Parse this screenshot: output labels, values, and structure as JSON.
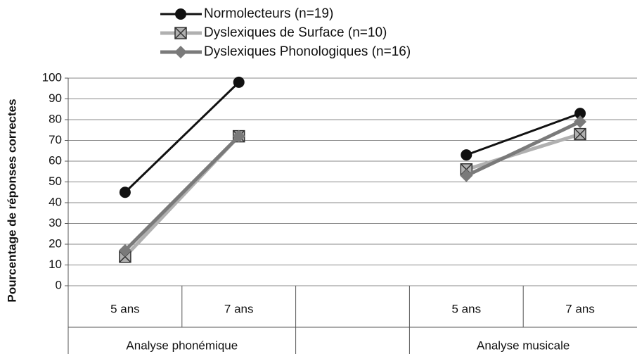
{
  "chart_data": {
    "type": "line",
    "ylabel": "Pourcentage de réponses correctes",
    "categories": [
      "5 ans",
      "7 ans",
      null,
      "5 ans",
      "7 ans"
    ],
    "groups": [
      "Analyse phonémique",
      "Analyse musicale"
    ],
    "series": [
      {
        "name": "Normolecteurs (n=19)",
        "color": "#111111",
        "marker": "circle",
        "values": [
          45,
          98,
          null,
          63,
          83
        ]
      },
      {
        "name": "Dyslexiques de Surface (n=10)",
        "color": "#b0b0b0",
        "marker": "square-x",
        "values": [
          14,
          72,
          null,
          56,
          73
        ]
      },
      {
        "name": "Dyslexiques Phonologiques (n=16)",
        "color": "#7a7a7a",
        "marker": "diamond",
        "values": [
          17,
          72,
          null,
          53,
          79
        ]
      }
    ],
    "ylim": [
      0,
      100
    ],
    "yticks": [
      0,
      10,
      20,
      30,
      40,
      50,
      60,
      70,
      80,
      90,
      100
    ],
    "grid": true
  }
}
